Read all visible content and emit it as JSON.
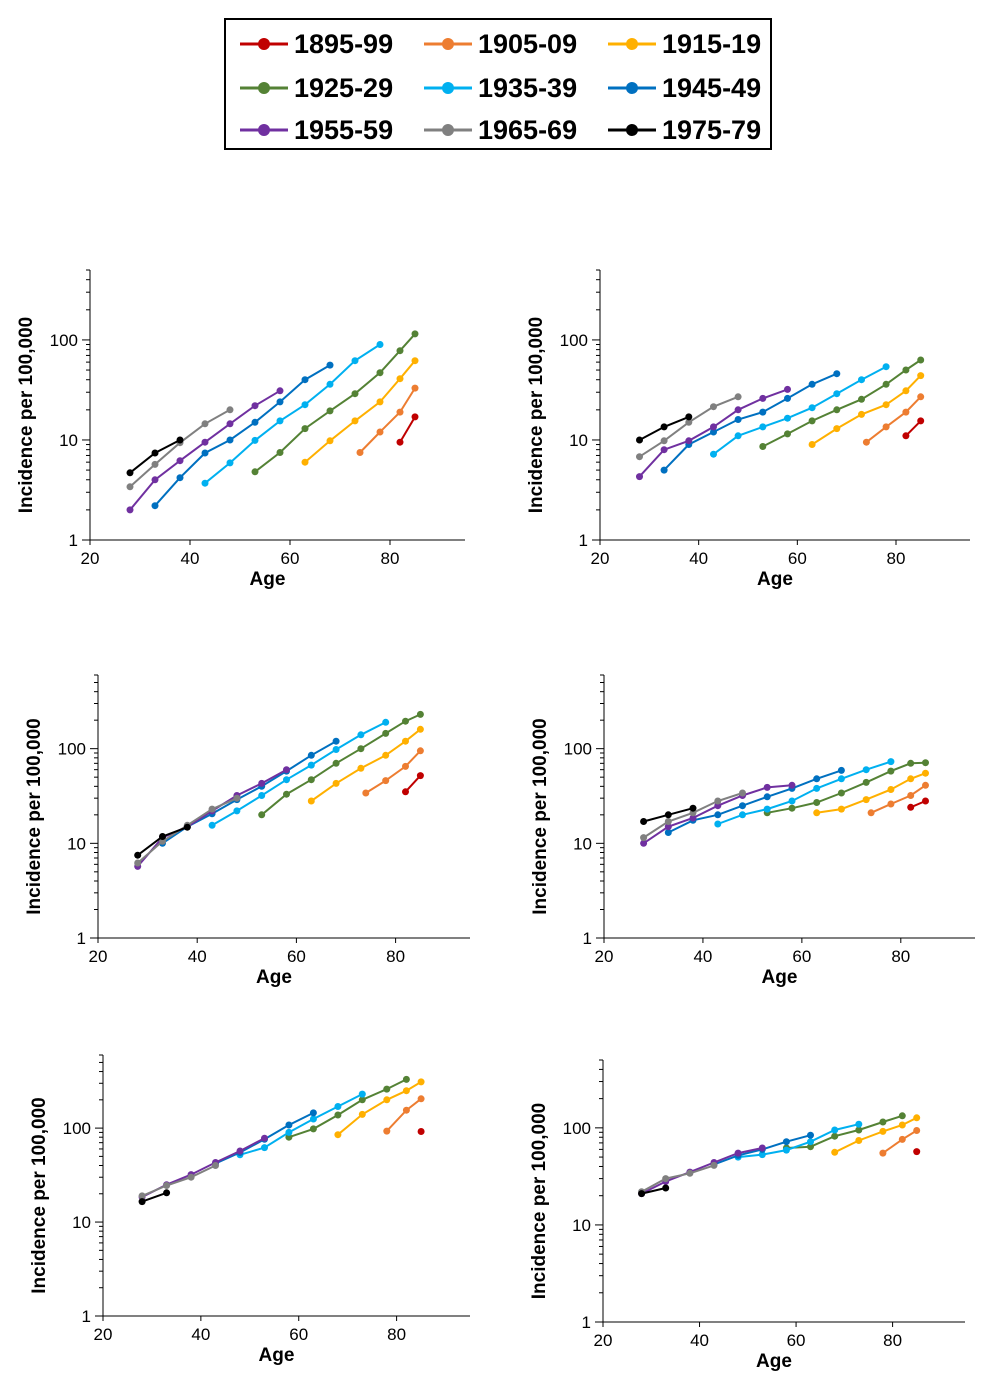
{
  "legend": [
    {
      "label": "1895-99",
      "color": "#c00000"
    },
    {
      "label": "1905-09",
      "color": "#ed7d31"
    },
    {
      "label": "1915-19",
      "color": "#ffb000"
    },
    {
      "label": "1925-29",
      "color": "#548235"
    },
    {
      "label": "1935-39",
      "color": "#00b0f0"
    },
    {
      "label": "1945-49",
      "color": "#0070c0"
    },
    {
      "label": "1955-59",
      "color": "#7030a0"
    },
    {
      "label": "1965-69",
      "color": "#808080"
    },
    {
      "label": "1975-79",
      "color": "#000000"
    }
  ],
  "chart_data": [
    {
      "type": "line",
      "xscale": "linear",
      "yscale": "log",
      "xlabel": "Age",
      "ylabel": "Incidence per 100,000",
      "xticks": [
        20,
        40,
        60,
        80
      ],
      "yticks": [
        1,
        10,
        100
      ],
      "xlim": [
        20,
        95
      ],
      "ylim": [
        1,
        500
      ],
      "series": [
        {
          "name": "1895-99",
          "x": [
            82,
            85
          ],
          "y": [
            9.5,
            17
          ]
        },
        {
          "name": "1905-09",
          "x": [
            74,
            78,
            82,
            85
          ],
          "y": [
            7.5,
            12,
            19,
            33
          ]
        },
        {
          "name": "1915-19",
          "x": [
            63,
            68,
            73,
            78,
            82,
            85
          ],
          "y": [
            6,
            9.8,
            15.5,
            24,
            41,
            62
          ]
        },
        {
          "name": "1925-29",
          "x": [
            53,
            58,
            63,
            68,
            73,
            78,
            82,
            85
          ],
          "y": [
            4.8,
            7.5,
            13,
            19.5,
            29,
            47,
            78,
            115
          ]
        },
        {
          "name": "1935-39",
          "x": [
            43,
            48,
            53,
            58,
            63,
            68,
            73,
            78
          ],
          "y": [
            3.7,
            5.9,
            9.9,
            15.5,
            22.5,
            36,
            62,
            90
          ]
        },
        {
          "name": "1945-49",
          "x": [
            33,
            38,
            43,
            48,
            53,
            58,
            63,
            68
          ],
          "y": [
            2.2,
            4.2,
            7.4,
            10,
            15,
            24,
            40,
            56
          ]
        },
        {
          "name": "1955-59",
          "x": [
            28,
            33,
            38,
            43,
            48,
            53,
            58
          ],
          "y": [
            2,
            4,
            6.2,
            9.5,
            14.5,
            22,
            31
          ]
        },
        {
          "name": "1965-69",
          "x": [
            28,
            33,
            38,
            43,
            48
          ],
          "y": [
            3.4,
            5.7,
            9.4,
            14.5,
            20
          ]
        },
        {
          "name": "1975-79",
          "x": [
            28,
            33,
            38
          ],
          "y": [
            4.7,
            7.4,
            10
          ]
        }
      ]
    },
    {
      "type": "line",
      "xscale": "linear",
      "yscale": "log",
      "xlabel": "Age",
      "ylabel": "Incidence per 100,000",
      "xticks": [
        20,
        40,
        60,
        80
      ],
      "yticks": [
        1,
        10,
        100
      ],
      "xlim": [
        20,
        95
      ],
      "ylim": [
        1,
        500
      ],
      "series": [
        {
          "name": "1895-99",
          "x": [
            82,
            85
          ],
          "y": [
            11,
            15.5
          ]
        },
        {
          "name": "1905-09",
          "x": [
            74,
            78,
            82,
            85
          ],
          "y": [
            9.5,
            13.5,
            19,
            27
          ]
        },
        {
          "name": "1915-19",
          "x": [
            63,
            68,
            73,
            78,
            82,
            85
          ],
          "y": [
            9,
            13,
            18,
            22.5,
            31,
            44
          ]
        },
        {
          "name": "1925-29",
          "x": [
            53,
            58,
            63,
            68,
            73,
            78,
            82,
            85
          ],
          "y": [
            8.6,
            11.5,
            15.5,
            20,
            25.5,
            36,
            50,
            63
          ]
        },
        {
          "name": "1935-39",
          "x": [
            43,
            48,
            53,
            58,
            63,
            68,
            73,
            78
          ],
          "y": [
            7.2,
            11,
            13.5,
            16.5,
            21,
            29,
            40,
            54
          ]
        },
        {
          "name": "1945-49",
          "x": [
            33,
            38,
            43,
            48,
            53,
            58,
            63,
            68
          ],
          "y": [
            5,
            9,
            12,
            16,
            19,
            26,
            36,
            46
          ]
        },
        {
          "name": "1955-59",
          "x": [
            28,
            33,
            38,
            43,
            48,
            53,
            58
          ],
          "y": [
            4.3,
            8,
            9.8,
            13.5,
            20,
            26,
            32
          ]
        },
        {
          "name": "1965-69",
          "x": [
            28,
            33,
            38,
            43,
            48
          ],
          "y": [
            6.8,
            9.8,
            15,
            21.5,
            27
          ]
        },
        {
          "name": "1975-79",
          "x": [
            28,
            33,
            38
          ],
          "y": [
            10,
            13.5,
            17
          ]
        }
      ]
    },
    {
      "type": "line",
      "xscale": "linear",
      "yscale": "log",
      "xlabel": "Age",
      "ylabel": "Incidence per 100,000",
      "xticks": [
        20,
        40,
        60,
        80
      ],
      "yticks": [
        1,
        10,
        100
      ],
      "xlim": [
        20,
        95
      ],
      "ylim": [
        1,
        600
      ],
      "series": [
        {
          "name": "1895-99",
          "x": [
            82,
            85
          ],
          "y": [
            35,
            52
          ]
        },
        {
          "name": "1905-09",
          "x": [
            74,
            78,
            82,
            85
          ],
          "y": [
            34,
            46,
            65,
            95
          ]
        },
        {
          "name": "1915-19",
          "x": [
            63,
            68,
            73,
            78,
            82,
            85
          ],
          "y": [
            28,
            43,
            62,
            85,
            120,
            160
          ]
        },
        {
          "name": "1925-29",
          "x": [
            53,
            58,
            63,
            68,
            73,
            78,
            82,
            85
          ],
          "y": [
            20,
            33,
            47,
            70,
            100,
            145,
            195,
            230
          ]
        },
        {
          "name": "1935-39",
          "x": [
            43,
            48,
            53,
            58,
            63,
            68,
            73,
            78
          ],
          "y": [
            15.5,
            22,
            32,
            47,
            67,
            98,
            140,
            190
          ]
        },
        {
          "name": "1945-49",
          "x": [
            33,
            38,
            43,
            48,
            53,
            58,
            63,
            68
          ],
          "y": [
            10,
            15,
            20.5,
            29,
            40,
            58,
            85,
            120
          ]
        },
        {
          "name": "1955-59",
          "x": [
            28,
            33,
            38,
            43,
            48,
            53,
            58
          ],
          "y": [
            5.7,
            11.5,
            15,
            22,
            32,
            43,
            60
          ]
        },
        {
          "name": "1965-69",
          "x": [
            28,
            33,
            38,
            43,
            48
          ],
          "y": [
            6.2,
            10.5,
            15.5,
            23,
            30
          ]
        },
        {
          "name": "1975-79",
          "x": [
            28,
            33,
            38
          ],
          "y": [
            7.5,
            11.8,
            14.8
          ]
        }
      ]
    },
    {
      "type": "line",
      "xscale": "linear",
      "yscale": "log",
      "xlabel": "Age",
      "ylabel": "Incidence per 100,000",
      "xticks": [
        20,
        40,
        60,
        80
      ],
      "yticks": [
        1,
        10,
        100
      ],
      "xlim": [
        20,
        95
      ],
      "ylim": [
        1,
        600
      ],
      "series": [
        {
          "name": "1895-99",
          "x": [
            82,
            85
          ],
          "y": [
            24,
            28
          ]
        },
        {
          "name": "1905-09",
          "x": [
            74,
            78,
            82,
            85
          ],
          "y": [
            21,
            26,
            32,
            41
          ]
        },
        {
          "name": "1915-19",
          "x": [
            63,
            68,
            73,
            78,
            82,
            85
          ],
          "y": [
            21,
            23,
            29,
            37,
            48,
            55
          ]
        },
        {
          "name": "1925-29",
          "x": [
            53,
            58,
            63,
            68,
            73,
            78,
            82,
            85
          ],
          "y": [
            21,
            23.5,
            27,
            34,
            44,
            58,
            70,
            71
          ]
        },
        {
          "name": "1935-39",
          "x": [
            43,
            48,
            53,
            58,
            63,
            68,
            73,
            78
          ],
          "y": [
            16,
            20,
            23,
            28,
            38,
            48,
            60,
            73
          ]
        },
        {
          "name": "1945-49",
          "x": [
            33,
            38,
            43,
            48,
            53,
            58,
            63,
            68
          ],
          "y": [
            13,
            17.5,
            20,
            25,
            31,
            38,
            48,
            59
          ]
        },
        {
          "name": "1955-59",
          "x": [
            28,
            33,
            38,
            43,
            48,
            53,
            58
          ],
          "y": [
            10,
            15,
            18.5,
            25,
            32,
            39,
            41
          ]
        },
        {
          "name": "1965-69",
          "x": [
            28,
            33,
            38,
            43,
            48
          ],
          "y": [
            11.5,
            17,
            21,
            28,
            34
          ]
        },
        {
          "name": "1975-79",
          "x": [
            28,
            33,
            38
          ],
          "y": [
            17,
            20,
            23.5
          ]
        }
      ]
    },
    {
      "type": "line",
      "xscale": "linear",
      "yscale": "log",
      "xlabel": "Age",
      "ylabel": "Incidence per 100,000",
      "xticks": [
        20,
        40,
        60,
        80
      ],
      "yticks": [
        1,
        10,
        100
      ],
      "xlim": [
        20,
        95
      ],
      "ylim": [
        1,
        600
      ],
      "series": [
        {
          "name": "1895-99",
          "x": [
            85
          ],
          "y": [
            92
          ]
        },
        {
          "name": "1905-09",
          "x": [
            78,
            82,
            85
          ],
          "y": [
            93,
            155,
            205
          ]
        },
        {
          "name": "1915-19",
          "x": [
            68,
            73,
            78,
            82,
            85
          ],
          "y": [
            85,
            140,
            200,
            250,
            310
          ]
        },
        {
          "name": "1925-29",
          "x": [
            58,
            63,
            68,
            73,
            78,
            82
          ],
          "y": [
            80,
            98,
            138,
            200,
            260,
            330
          ]
        },
        {
          "name": "1935-39",
          "x": [
            48,
            53,
            58,
            63,
            68,
            73
          ],
          "y": [
            52,
            62,
            90,
            125,
            170,
            230
          ]
        },
        {
          "name": "1945-49",
          "x": [
            43,
            48,
            53,
            58,
            63
          ],
          "y": [
            42,
            55,
            76,
            108,
            145
          ]
        },
        {
          "name": "1955-59",
          "x": [
            28,
            33,
            38,
            43,
            48,
            53
          ],
          "y": [
            18.5,
            25,
            32,
            43,
            57,
            78
          ]
        },
        {
          "name": "1965-69",
          "x": [
            28,
            33,
            38,
            43
          ],
          "y": [
            19,
            24.5,
            30,
            40
          ]
        },
        {
          "name": "1975-79",
          "x": [
            28,
            33
          ],
          "y": [
            16.5,
            20.5
          ]
        }
      ]
    },
    {
      "type": "line",
      "xscale": "linear",
      "yscale": "log",
      "xlabel": "Age",
      "ylabel": "Incidence per 100,000",
      "xticks": [
        20,
        40,
        60,
        80
      ],
      "yticks": [
        1,
        10,
        100
      ],
      "xlim": [
        20,
        95
      ],
      "ylim": [
        1,
        500
      ],
      "series": [
        {
          "name": "1895-99",
          "x": [
            85
          ],
          "y": [
            57
          ]
        },
        {
          "name": "1905-09",
          "x": [
            78,
            82,
            85
          ],
          "y": [
            55,
            76,
            94
          ]
        },
        {
          "name": "1915-19",
          "x": [
            68,
            73,
            78,
            82,
            85
          ],
          "y": [
            56,
            74,
            92,
            107,
            127
          ]
        },
        {
          "name": "1925-29",
          "x": [
            58,
            63,
            68,
            73,
            78,
            82
          ],
          "y": [
            62,
            64,
            82,
            95,
            115,
            133
          ]
        },
        {
          "name": "1935-39",
          "x": [
            48,
            53,
            58,
            63,
            68,
            73
          ],
          "y": [
            50,
            53,
            59,
            72,
            95,
            109
          ]
        },
        {
          "name": "1945-49",
          "x": [
            43,
            48,
            53,
            58,
            63
          ],
          "y": [
            42,
            52,
            60,
            72,
            84
          ]
        },
        {
          "name": "1955-59",
          "x": [
            28,
            33,
            38,
            43,
            48,
            53
          ],
          "y": [
            21,
            28,
            35,
            44,
            55,
            62
          ]
        },
        {
          "name": "1965-69",
          "x": [
            28,
            33,
            38,
            43
          ],
          "y": [
            22,
            30,
            34,
            41
          ]
        },
        {
          "name": "1975-79",
          "x": [
            28,
            33
          ],
          "y": [
            21,
            24
          ]
        }
      ]
    }
  ]
}
